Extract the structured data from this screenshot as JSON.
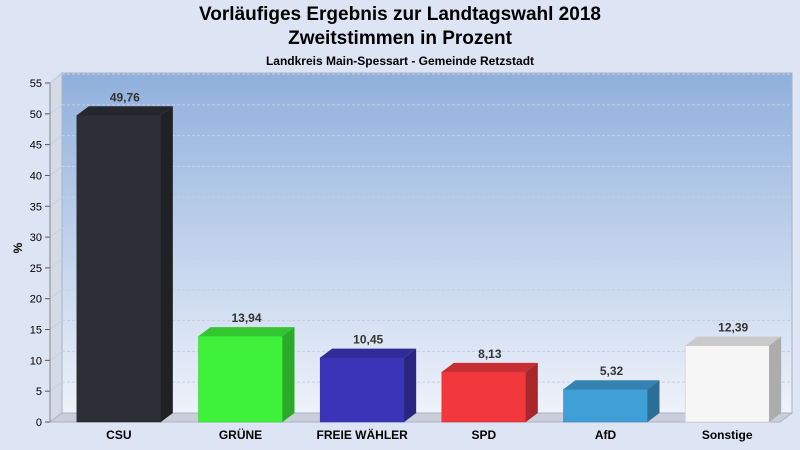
{
  "chart_data": {
    "type": "bar",
    "title": "Vorläufiges Ergebnis zur Landtagswahl 2018",
    "subtitle": "Zweitstimmen in Prozent",
    "caption": "Landkreis Main-Spessart - Gemeinde Retzstadt",
    "ylabel": "%",
    "ylim": [
      0,
      55
    ],
    "yticks": [
      "0",
      "5",
      "10",
      "15",
      "20",
      "25",
      "30",
      "35",
      "40",
      "45",
      "50",
      "55"
    ],
    "grid": true,
    "categories": [
      "CSU",
      "GRÜNE",
      "FREIE WÄHLER",
      "SPD",
      "AfD",
      "Sonstige"
    ],
    "values": [
      49.76,
      13.94,
      10.45,
      8.13,
      5.32,
      12.39
    ],
    "value_labels": [
      "49,76",
      "13,94",
      "10,45",
      "8,13",
      "5,32",
      "12,39"
    ],
    "colors": [
      "#2c2f35",
      "#3ef23a",
      "#3a35b8",
      "#f2383c",
      "#3f9fd6",
      "#f6f6f6"
    ]
  }
}
